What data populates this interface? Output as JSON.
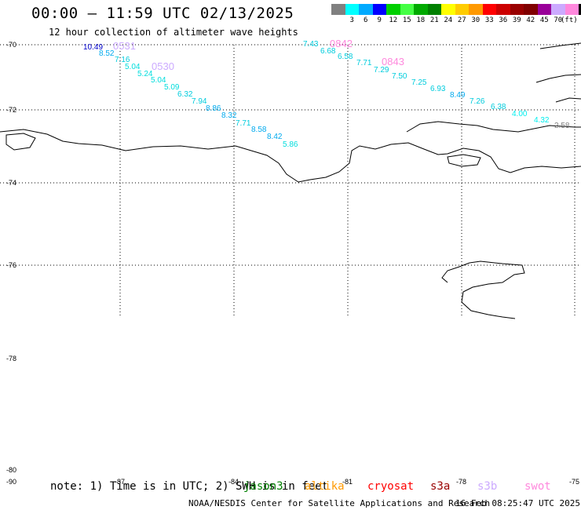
{
  "title": "00:00 – 11:59 UTC 02/13/2025",
  "subtitle": "12 hour collection of altimeter wave heights",
  "legend": {
    "unit": "(ft)",
    "levels": [
      {
        "label": "",
        "color": "#808080"
      },
      {
        "label": "3",
        "color": "#00ffff"
      },
      {
        "label": "6",
        "color": "#00aaff"
      },
      {
        "label": "9",
        "color": "#0000ff"
      },
      {
        "label": "12",
        "color": "#00d000"
      },
      {
        "label": "15",
        "color": "#44ff44"
      },
      {
        "label": "18",
        "color": "#00aa00"
      },
      {
        "label": "21",
        "color": "#008000"
      },
      {
        "label": "24",
        "color": "#ffff00"
      },
      {
        "label": "27",
        "color": "#ffcc00"
      },
      {
        "label": "30",
        "color": "#ff9900"
      },
      {
        "label": "33",
        "color": "#ff0000"
      },
      {
        "label": "36",
        "color": "#cc0000"
      },
      {
        "label": "39",
        "color": "#990000"
      },
      {
        "label": "42",
        "color": "#800000"
      },
      {
        "label": "45",
        "color": "#990099"
      },
      {
        "label": "70",
        "color": "#ccaaff"
      },
      {
        "label": "",
        "color": "#ff88dd"
      },
      {
        "label": "",
        "color": "#000000"
      }
    ]
  },
  "map": {
    "lat_labels": [
      "-70",
      "-72",
      "-74",
      "-76",
      "-78",
      "-80",
      "-90"
    ],
    "lon_labels": [
      "-87",
      "-84",
      "-81",
      "-78",
      "-75"
    ],
    "track1_times": [
      "0531",
      "0530"
    ],
    "track2_times": [
      "0842",
      "0843"
    ],
    "track1": [
      {
        "v": "10.49",
        "color": "#0000cc"
      },
      {
        "v": "8.52",
        "color": "#00aaee"
      },
      {
        "v": "7.16",
        "color": "#00ccdd"
      },
      {
        "v": "5.04",
        "color": "#00dddd"
      },
      {
        "v": "5.24",
        "color": "#00dddd"
      },
      {
        "v": "5.04",
        "color": "#00dddd"
      },
      {
        "v": "5.09",
        "color": "#00dddd"
      },
      {
        "v": "6.32",
        "color": "#00ccdd"
      },
      {
        "v": "7.94",
        "color": "#00ccdd"
      },
      {
        "v": "8.86",
        "color": "#00aaee"
      },
      {
        "v": "8.32",
        "color": "#00aaee"
      },
      {
        "v": "7.71",
        "color": "#00ccdd"
      },
      {
        "v": "8.58",
        "color": "#00aaee"
      },
      {
        "v": "8.42",
        "color": "#00aaee"
      },
      {
        "v": "5.86",
        "color": "#00dddd"
      }
    ],
    "track2": [
      {
        "v": "7.43",
        "color": "#00ccdd"
      },
      {
        "v": "6.68",
        "color": "#00ccdd"
      },
      {
        "v": "6.58",
        "color": "#00ccdd"
      },
      {
        "v": "7.71",
        "color": "#00ccdd"
      },
      {
        "v": "7.29",
        "color": "#00ccdd"
      },
      {
        "v": "7.50",
        "color": "#00ccdd"
      },
      {
        "v": "7.25",
        "color": "#00ccdd"
      },
      {
        "v": "6.93",
        "color": "#00ccdd"
      },
      {
        "v": "8.49",
        "color": "#00aaee"
      },
      {
        "v": "7.26",
        "color": "#00ccdd"
      },
      {
        "v": "6.38",
        "color": "#00ccdd"
      },
      {
        "v": "4.00",
        "color": "#00eeee"
      },
      {
        "v": "4.32",
        "color": "#00eeee"
      },
      {
        "v": "2.58",
        "color": "#808080"
      }
    ]
  },
  "note": "note: 1) Time is in UTC; 2) SWH is in feet",
  "satellites": [
    {
      "name": "jason3",
      "color": "#008000"
    },
    {
      "name": "altika",
      "color": "#ff9900"
    },
    {
      "name": "cryosat",
      "color": "#ff0000"
    },
    {
      "name": "s3a",
      "color": "#990000"
    },
    {
      "name": "s3b",
      "color": "#ccaaff"
    },
    {
      "name": "swot",
      "color": "#ff88dd"
    }
  ],
  "credit": "NOAA/NESDIS Center for Satellite Applications and Research",
  "generated": "16 Feb 08:25:47 UTC 2025"
}
